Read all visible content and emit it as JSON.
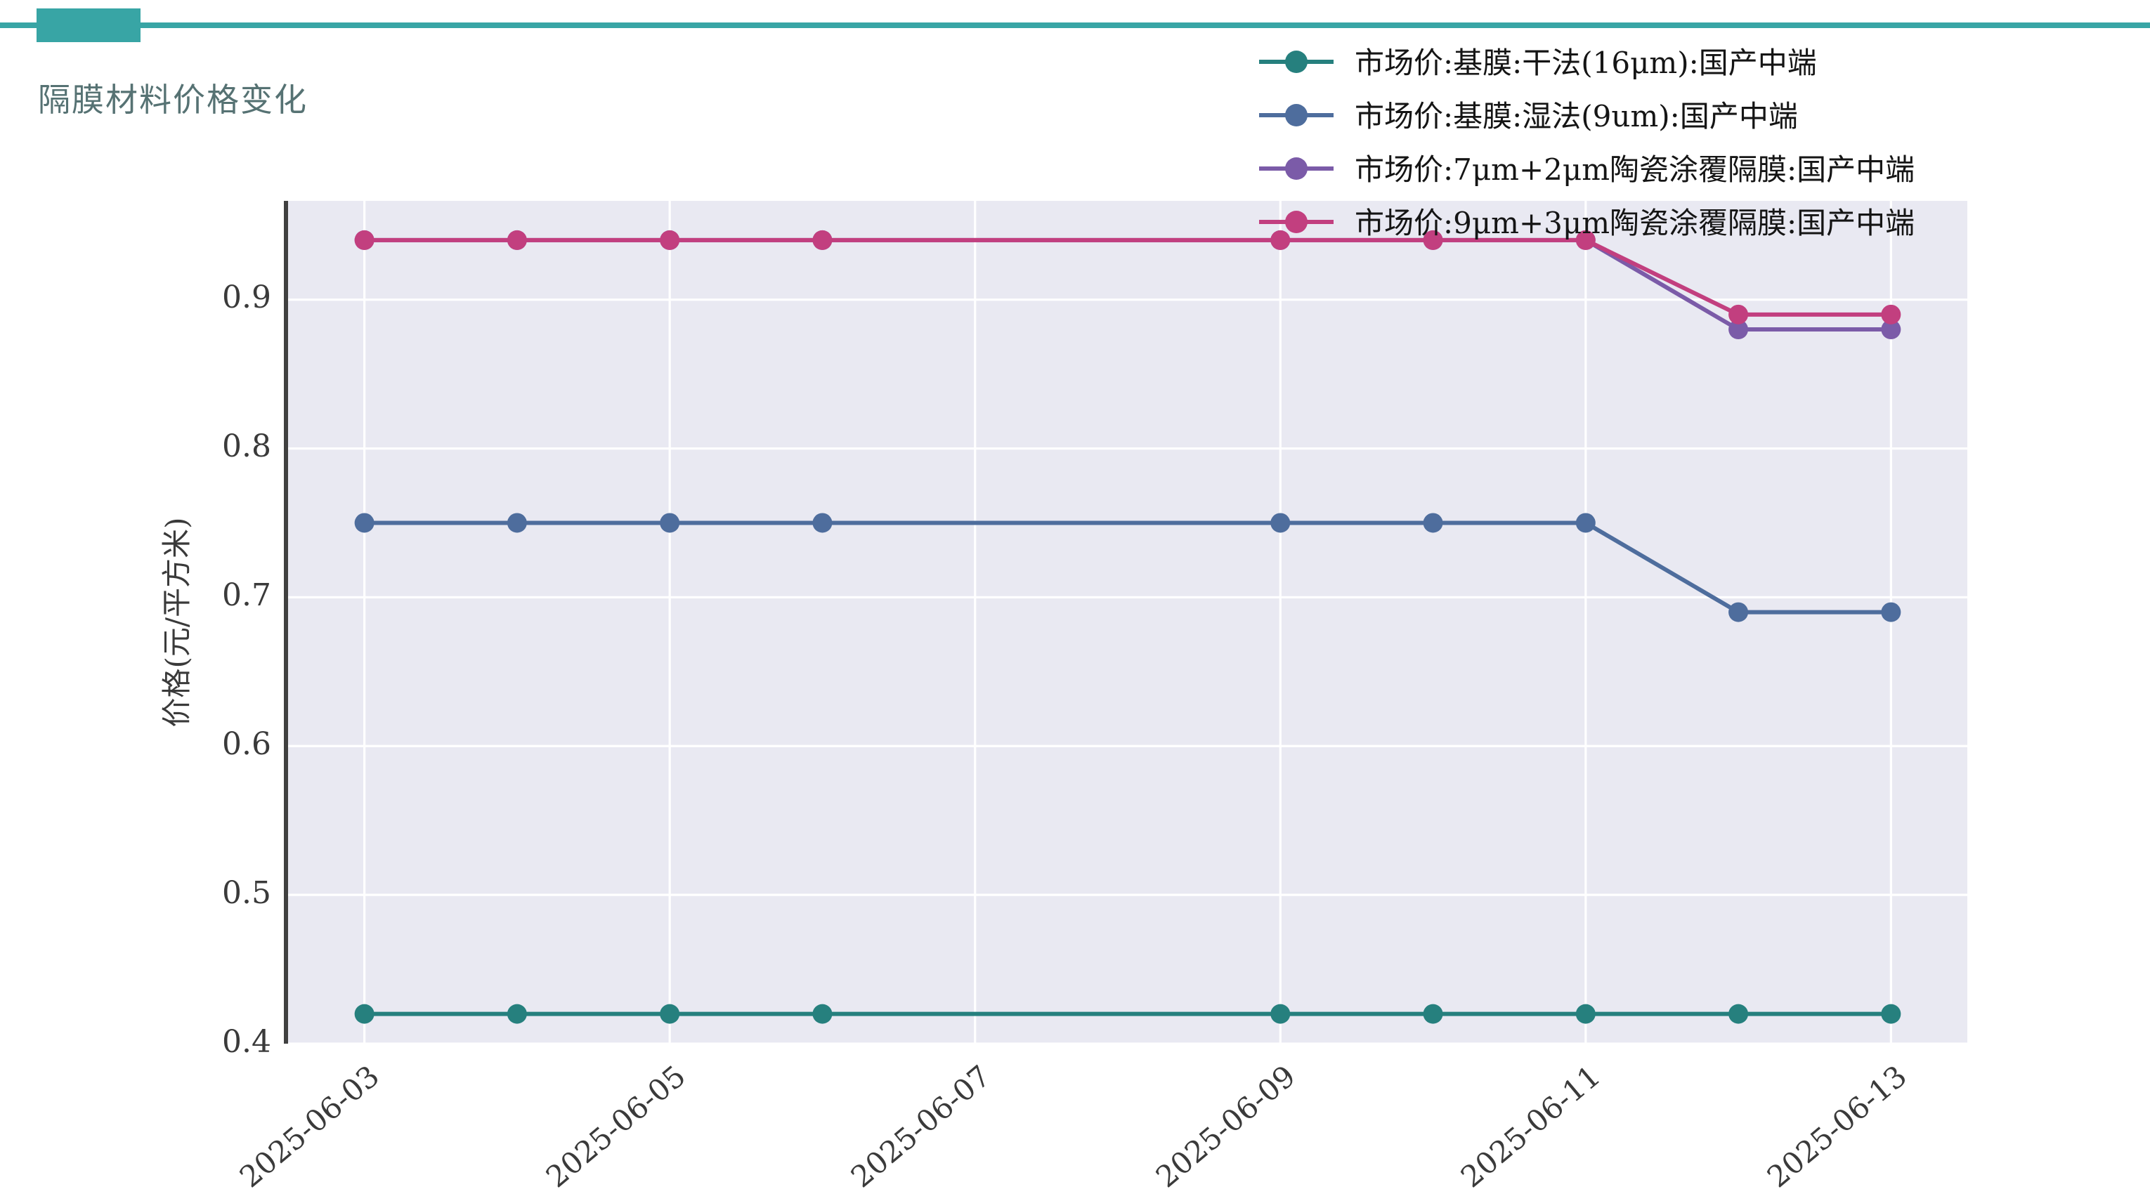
{
  "page": {
    "accent_color": "#38a5a5",
    "title": "隔膜材料价格变化"
  },
  "chart_data": {
    "type": "line",
    "title": "隔膜材料价格变化",
    "xlabel": "",
    "ylabel": "价格(元/平方米)",
    "plot_bg": "#e9e9f2",
    "grid": true,
    "legend_position": "top-right",
    "x": [
      "2025-06-03",
      "2025-06-04",
      "2025-06-05",
      "2025-06-06",
      "2025-06-09",
      "2025-06-10",
      "2025-06-11",
      "2025-06-12",
      "2025-06-13"
    ],
    "x_day_numbers": [
      3,
      4,
      5,
      6,
      9,
      10,
      11,
      12,
      13
    ],
    "x_domain": [
      2.5,
      13.5
    ],
    "x_tick_days": [
      3,
      5,
      7,
      9,
      11,
      13
    ],
    "x_tick_labels": [
      "2025-06-03",
      "2025-06-05",
      "2025-06-07",
      "2025-06-09",
      "2025-06-11",
      "2025-06-13"
    ],
    "y_ticks": [
      0.4,
      0.5,
      0.6,
      0.7,
      0.8,
      0.9
    ],
    "ylim": [
      0.4,
      0.9664
    ],
    "series": [
      {
        "name": "市场价:基膜:干法(16μm):国产中端",
        "color": "#26807e",
        "values": [
          0.42,
          0.42,
          0.42,
          0.42,
          0.42,
          0.42,
          0.42,
          0.42,
          0.42
        ]
      },
      {
        "name": "市场价:基膜:湿法(9um):国产中端",
        "color": "#4e6d9d",
        "values": [
          0.75,
          0.75,
          0.75,
          0.75,
          0.75,
          0.75,
          0.75,
          0.69,
          0.69
        ]
      },
      {
        "name": "市场价:7μm+2μm陶瓷涂覆隔膜:国产中端",
        "color": "#7b5ba8",
        "values": [
          0.94,
          0.94,
          0.94,
          0.94,
          0.94,
          0.94,
          0.94,
          0.88,
          0.88
        ]
      },
      {
        "name": "市场价:9μm+3μm陶瓷涂覆隔膜:国产中端",
        "color": "#c23f7f",
        "values": [
          0.94,
          0.94,
          0.94,
          0.94,
          0.94,
          0.94,
          0.94,
          0.89,
          0.89
        ]
      }
    ]
  }
}
